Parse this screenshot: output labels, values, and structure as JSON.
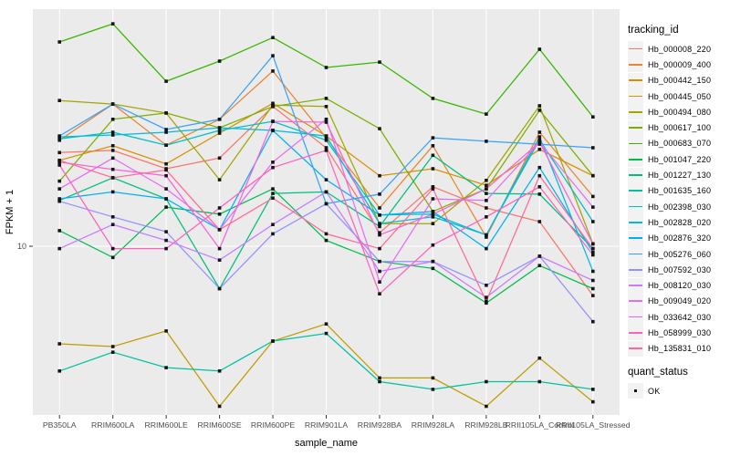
{
  "panel": {
    "background": "#EBEBEB",
    "gridline_color": "#FFFFFF",
    "tick_color": "#333333",
    "tick_label_color": "#4D4D4D",
    "axis_title_color": "#000000",
    "point_color": "#141414"
  },
  "chart_data": {
    "type": "line",
    "title": "",
    "xlabel": "sample_name",
    "ylabel": "FPKM + 1",
    "y_scale": "log10",
    "ylim": [
      2.3,
      75
    ],
    "y_ticks": [
      {
        "value": 10,
        "label": "10"
      }
    ],
    "grid": "major",
    "legend_position": "right",
    "legend_title": "tracking_id",
    "quant_status": {
      "title": "quant_status",
      "items": [
        "OK"
      ]
    },
    "categories": [
      "PB350LA",
      "RRIM600LA",
      "RRIM600LE",
      "RRIM600SE",
      "RRIM600PE",
      "RRIM901LA",
      "RRIM928BA",
      "RRIM928LA",
      "RRIM928LB",
      "RRII105LA_Control",
      "RRII105LA_Stressed"
    ],
    "series": [
      {
        "name": "Hb_000008_220",
        "color": "#F8766D",
        "values": [
          22.0,
          22.4,
          19.2,
          21.0,
          32.4,
          22.9,
          11.2,
          16.5,
          13.8,
          12.3,
          6.6
        ]
      },
      {
        "name": "Hb_000009_400",
        "color": "#EA8331",
        "values": [
          24.4,
          33.1,
          23.4,
          29.1,
          43.7,
          24.9,
          13.8,
          23.3,
          10.8,
          26.1,
          15.2
        ]
      },
      {
        "name": "Hb_000442_150",
        "color": "#D89000",
        "values": [
          20.6,
          23.3,
          20.0,
          25.9,
          33.3,
          25.3,
          18.1,
          19.2,
          16.7,
          22.6,
          18.1
        ]
      },
      {
        "name": "Hb_000445_050",
        "color": "#C09B00",
        "values": [
          4.4,
          4.3,
          4.9,
          2.6,
          4.5,
          5.2,
          3.3,
          3.3,
          2.6,
          3.9,
          2.7
        ]
      },
      {
        "name": "Hb_000494_080",
        "color": "#A3A500",
        "values": [
          34.1,
          33.1,
          30.7,
          17.5,
          32.8,
          32.4,
          12.1,
          12.1,
          17.4,
          32.6,
          10.2
        ]
      },
      {
        "name": "Hb_000617_100",
        "color": "#7CAE00",
        "values": [
          17.3,
          29.1,
          30.7,
          27.1,
          32.4,
          34.7,
          26.9,
          13.4,
          16.2,
          31.4,
          18.1
        ]
      },
      {
        "name": "Hb_000683_070",
        "color": "#39B600",
        "values": [
          55.8,
          65.0,
          40.1,
          47.5,
          57.9,
          45.0,
          47.1,
          34.7,
          30.4,
          52.5,
          29.7
        ]
      },
      {
        "name": "Hb_001047_220",
        "color": "#00BB4E",
        "values": [
          11.4,
          9.1,
          13.9,
          13.1,
          16.2,
          10.5,
          8.8,
          8.3,
          6.2,
          8.5,
          7.0
        ]
      },
      {
        "name": "Hb_001227_130",
        "color": "#00BF7D",
        "values": [
          14.7,
          17.8,
          14.9,
          7.0,
          15.6,
          15.8,
          11.8,
          21.5,
          15.6,
          15.5,
          9.8
        ]
      },
      {
        "name": "Hb_001635_160",
        "color": "#00C1A3",
        "values": [
          3.5,
          4.1,
          3.6,
          3.5,
          4.5,
          4.8,
          3.2,
          3.0,
          3.2,
          3.2,
          3.0
        ]
      },
      {
        "name": "Hb_002398_030",
        "color": "#00BFC4",
        "values": [
          24.7,
          26.1,
          23.4,
          26.5,
          28.6,
          24.4,
          13.0,
          13.1,
          11.0,
          24.5,
          12.3
        ]
      },
      {
        "name": "Hb_002828_020",
        "color": "#00BAE0",
        "values": [
          25.1,
          25.5,
          26.1,
          27.1,
          26.5,
          25.3,
          12.1,
          12.8,
          11.0,
          25.1,
          8.1
        ]
      },
      {
        "name": "Hb_002876_320",
        "color": "#00B0F6",
        "values": [
          14.9,
          15.8,
          14.9,
          11.5,
          26.5,
          17.5,
          13.0,
          13.4,
          9.8,
          19.4,
          9.5
        ]
      },
      {
        "name": "Hb_005276_060",
        "color": "#35A2FF",
        "values": [
          25.3,
          33.1,
          26.7,
          29.1,
          49.7,
          14.3,
          15.5,
          24.9,
          24.2,
          23.6,
          22.9
        ]
      },
      {
        "name": "Hb_007592_030",
        "color": "#9590FF",
        "values": [
          14.6,
          12.8,
          11.3,
          7.0,
          11.1,
          14.3,
          8.8,
          8.8,
          7.2,
          9.2,
          5.3
        ]
      },
      {
        "name": "Hb_008120_030",
        "color": "#C77CFF",
        "values": [
          9.8,
          12.0,
          10.5,
          8.9,
          12.0,
          15.8,
          8.1,
          8.8,
          6.5,
          9.2,
          7.5
        ]
      },
      {
        "name": "Hb_009049_020",
        "color": "#E76BF3",
        "values": [
          16.2,
          21.0,
          16.2,
          11.5,
          20.3,
          29.1,
          7.4,
          14.9,
          14.7,
          24.0,
          13.9
        ]
      },
      {
        "name": "Hb_033642_030",
        "color": "#FA62DB",
        "values": [
          20.3,
          19.1,
          18.1,
          9.8,
          28.6,
          28.4,
          11.0,
          13.1,
          16.2,
          24.0,
          10.2
        ]
      },
      {
        "name": "Hb_058999_030",
        "color": "#FF62BC",
        "values": [
          19.8,
          9.8,
          9.8,
          13.8,
          19.4,
          22.4,
          6.7,
          10.1,
          12.8,
          16.5,
          9.3
        ]
      },
      {
        "name": "Hb_135831_010",
        "color": "#FF6A98",
        "values": [
          20.6,
          17.8,
          19.0,
          11.5,
          15.0,
          11.1,
          9.8,
          16.2,
          6.3,
          18.1,
          9.8
        ]
      }
    ]
  }
}
